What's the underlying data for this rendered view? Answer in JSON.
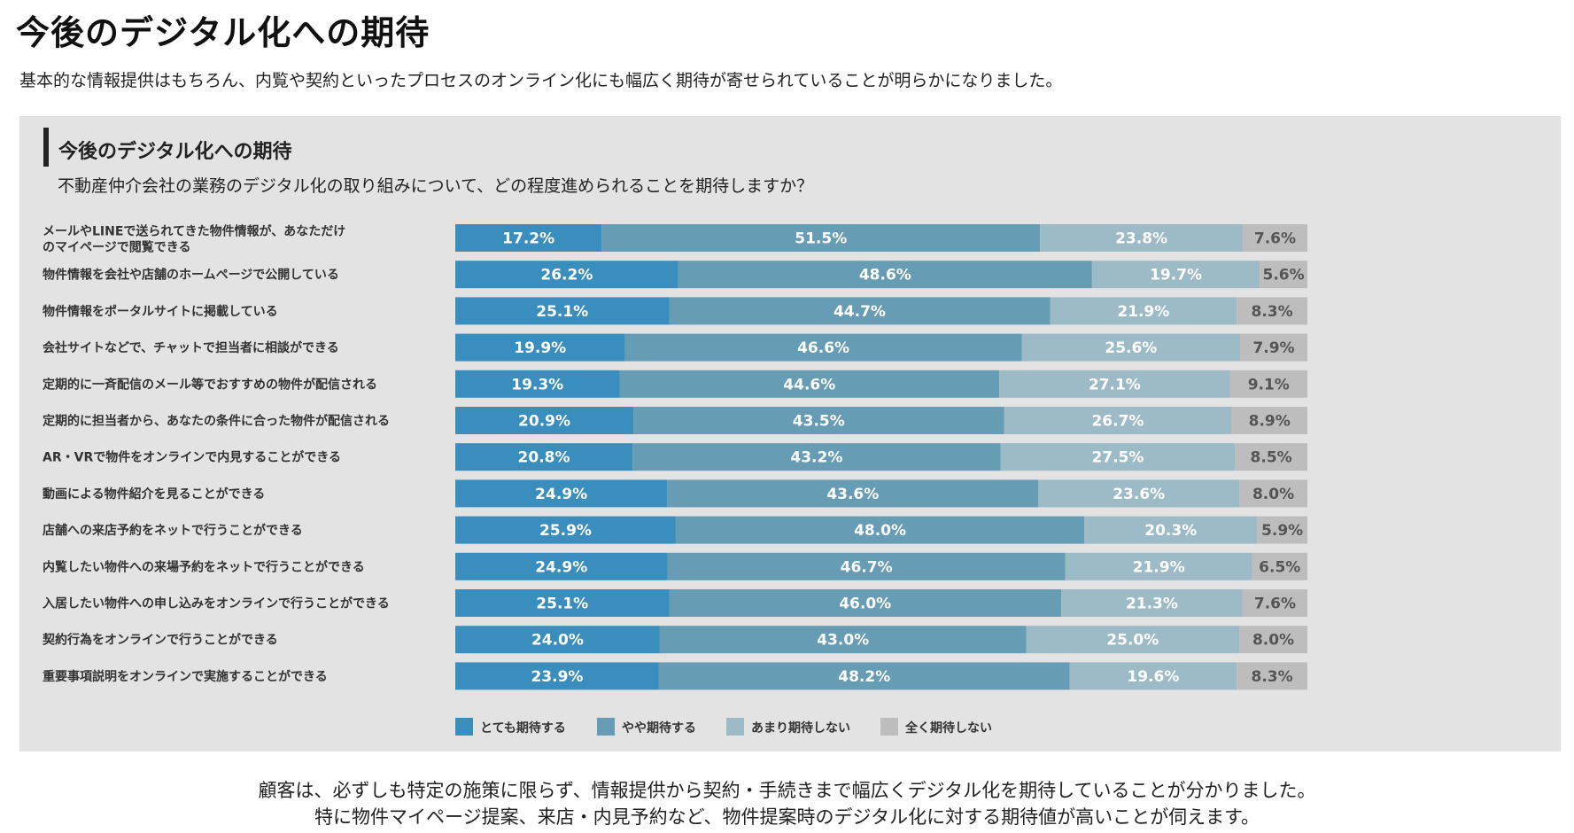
{
  "page": {
    "title": "今後のデジタル化への期待",
    "intro": "基本的な情報提供はもちろん、内覧や契約といったプロセスのオンライン化にも幅広く期待が寄せられていることが明らかになりました。",
    "summary_line1": "顧客は、必ずしも特定の施策に限らず、情報提供から契約・手続きまで幅広くデジタル化を期待していることが分かりました。",
    "summary_line2": "特に物件マイページ提案、来店・内見予約など、物件提案時のデジタル化に対する期待値が高いことが伺えます。"
  },
  "colors": {
    "panel_bg": "#e3e3e3",
    "series": [
      "#3a8ebd",
      "#669cb4",
      "#9dbac7",
      "#bdbdbd"
    ],
    "label_text_light": "#ffffff",
    "label_text_dark": "#555555"
  },
  "chart_data": {
    "type": "bar",
    "orientation": "horizontal",
    "stacked": true,
    "title": "今後のデジタル化への期待",
    "subtitle": "不動産仲介会社の業務のデジタル化の取り組みについて、どの程度進められることを期待しますか？",
    "unit": "%",
    "categories": [
      [
        "メールやLINEで送られてきた物件情報が、あなただけ",
        "のマイページで閲覧できる"
      ],
      [
        "物件情報を会社や店舗のホームページで公開している"
      ],
      [
        "物件情報をポータルサイトに掲載している"
      ],
      [
        "会社サイトなどで、チャットで担当者に相談ができる"
      ],
      [
        "定期的に一斉配信のメール等でおすすめの物件が配信される"
      ],
      [
        "定期的に担当者から、あなたの条件に合った物件が配信される"
      ],
      [
        "AR・VRで物件をオンラインで内見することができる"
      ],
      [
        "動画による物件紹介を見ることができる"
      ],
      [
        "店舗への来店予約をネットで行うことができる"
      ],
      [
        "内覧したい物件への来場予約をネットで行うことができる"
      ],
      [
        "入居したい物件への申し込みをオンラインで行うことができる"
      ],
      [
        "契約行為をオンラインで行うことができる"
      ],
      [
        "重要事項説明をオンラインで実施することができる"
      ]
    ],
    "series": [
      {
        "name": "とても期待する",
        "values": [
          17.2,
          26.2,
          25.1,
          19.9,
          19.3,
          20.9,
          20.8,
          24.9,
          25.9,
          24.9,
          25.1,
          24.0,
          23.9
        ]
      },
      {
        "name": "やや期待する",
        "values": [
          51.5,
          48.6,
          44.7,
          46.6,
          44.6,
          43.5,
          43.2,
          43.6,
          48.0,
          46.7,
          46.0,
          43.0,
          48.2
        ]
      },
      {
        "name": "あまり期待しない",
        "values": [
          23.8,
          19.7,
          21.9,
          25.6,
          27.1,
          26.7,
          27.5,
          23.6,
          20.3,
          21.9,
          21.3,
          25.0,
          19.6
        ]
      },
      {
        "name": "全く期待しない",
        "values": [
          7.6,
          5.6,
          8.3,
          7.9,
          9.1,
          8.9,
          8.5,
          8.0,
          5.9,
          6.5,
          7.6,
          8.0,
          8.3
        ]
      }
    ],
    "xlim": [
      0,
      100
    ],
    "grid": false,
    "legend_position": "bottom"
  }
}
